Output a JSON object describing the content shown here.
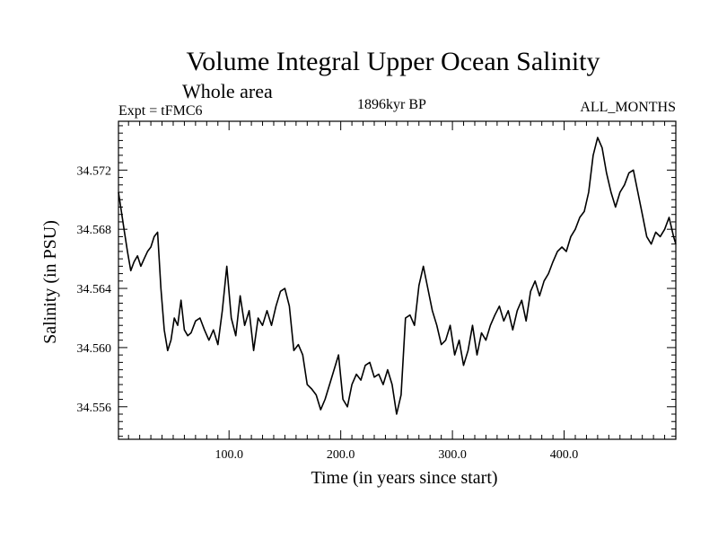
{
  "header": {
    "title": "Volume Integral Upper Ocean Salinity",
    "subtitle": "Whole area",
    "experiment": "Expt = tFMC6",
    "period": "1896kyr BP",
    "months": "ALL_MONTHS"
  },
  "chart_data": {
    "type": "line",
    "title": "Volume Integral Upper Ocean Salinity",
    "xlabel": "Time (in years since start)",
    "ylabel": "Salinity (in PSU)",
    "xlim": [
      1,
      500
    ],
    "ylim": [
      34.5538,
      34.5753
    ],
    "x_ticks": [
      100,
      200,
      300,
      400
    ],
    "x_tick_labels": [
      "100.0",
      "200.0",
      "300.0",
      "400.0"
    ],
    "y_ticks": [
      34.556,
      34.56,
      34.564,
      34.568,
      34.572
    ],
    "y_tick_labels": [
      "34.556",
      "34.560",
      "34.564",
      "34.568",
      "34.572"
    ],
    "grid": false,
    "series": [
      {
        "name": "Salinity",
        "x": [
          1,
          3,
          6,
          9,
          12,
          15,
          18,
          21,
          24,
          27,
          30,
          33,
          36,
          39,
          42,
          45,
          48,
          51,
          54,
          57,
          60,
          63,
          66,
          70,
          74,
          78,
          82,
          86,
          90,
          94,
          98,
          102,
          106,
          110,
          114,
          118,
          122,
          126,
          130,
          134,
          138,
          142,
          146,
          150,
          154,
          158,
          162,
          166,
          170,
          174,
          178,
          182,
          186,
          190,
          194,
          198,
          202,
          206,
          210,
          214,
          218,
          222,
          226,
          230,
          234,
          238,
          242,
          246,
          250,
          254,
          258,
          262,
          266,
          270,
          274,
          278,
          282,
          286,
          290,
          294,
          298,
          302,
          306,
          310,
          314,
          318,
          322,
          326,
          330,
          334,
          338,
          342,
          346,
          350,
          354,
          358,
          362,
          366,
          370,
          374,
          378,
          382,
          386,
          390,
          394,
          398,
          402,
          406,
          410,
          414,
          418,
          422,
          426,
          430,
          434,
          438,
          442,
          446,
          450,
          454,
          458,
          462,
          466,
          470,
          474,
          478,
          482,
          486,
          490,
          494,
          498,
          500
        ],
        "y": [
          34.5705,
          34.5695,
          34.568,
          34.5665,
          34.5652,
          34.5658,
          34.5662,
          34.5655,
          34.566,
          34.5665,
          34.5668,
          34.5675,
          34.5678,
          34.564,
          34.5612,
          34.5598,
          34.5605,
          34.562,
          34.5615,
          34.5632,
          34.5612,
          34.5608,
          34.561,
          34.5618,
          34.562,
          34.5612,
          34.5605,
          34.5612,
          34.5602,
          34.5625,
          34.5655,
          34.562,
          34.5608,
          34.5635,
          34.5615,
          34.5625,
          34.5598,
          34.562,
          34.5615,
          34.5625,
          34.5615,
          34.5628,
          34.5638,
          34.564,
          34.5628,
          34.5598,
          34.5602,
          34.5595,
          34.5575,
          34.5572,
          34.5568,
          34.5558,
          34.5565,
          34.5575,
          34.5585,
          34.5595,
          34.5565,
          34.556,
          34.5575,
          34.5582,
          34.5578,
          34.5588,
          34.559,
          34.558,
          34.5582,
          34.5575,
          34.5585,
          34.5575,
          34.5555,
          34.5568,
          34.562,
          34.5622,
          34.5615,
          34.5642,
          34.5655,
          34.564,
          34.5625,
          34.5615,
          34.5602,
          34.5605,
          34.5615,
          34.5595,
          34.5605,
          34.5588,
          34.5598,
          34.5615,
          34.5595,
          34.561,
          34.5605,
          34.5615,
          34.5622,
          34.5628,
          34.5618,
          34.5625,
          34.5612,
          34.5625,
          34.5632,
          34.5618,
          34.5638,
          34.5645,
          34.5635,
          34.5645,
          34.565,
          34.5658,
          34.5665,
          34.5668,
          34.5665,
          34.5675,
          34.568,
          34.5688,
          34.5692,
          34.5705,
          34.573,
          34.5742,
          34.5735,
          34.5718,
          34.5705,
          34.5695,
          34.5705,
          34.571,
          34.5718,
          34.572,
          34.5705,
          34.569,
          34.5675,
          34.567,
          34.5678,
          34.5675,
          34.568,
          34.5688,
          34.5675,
          34.567
        ]
      }
    ]
  }
}
